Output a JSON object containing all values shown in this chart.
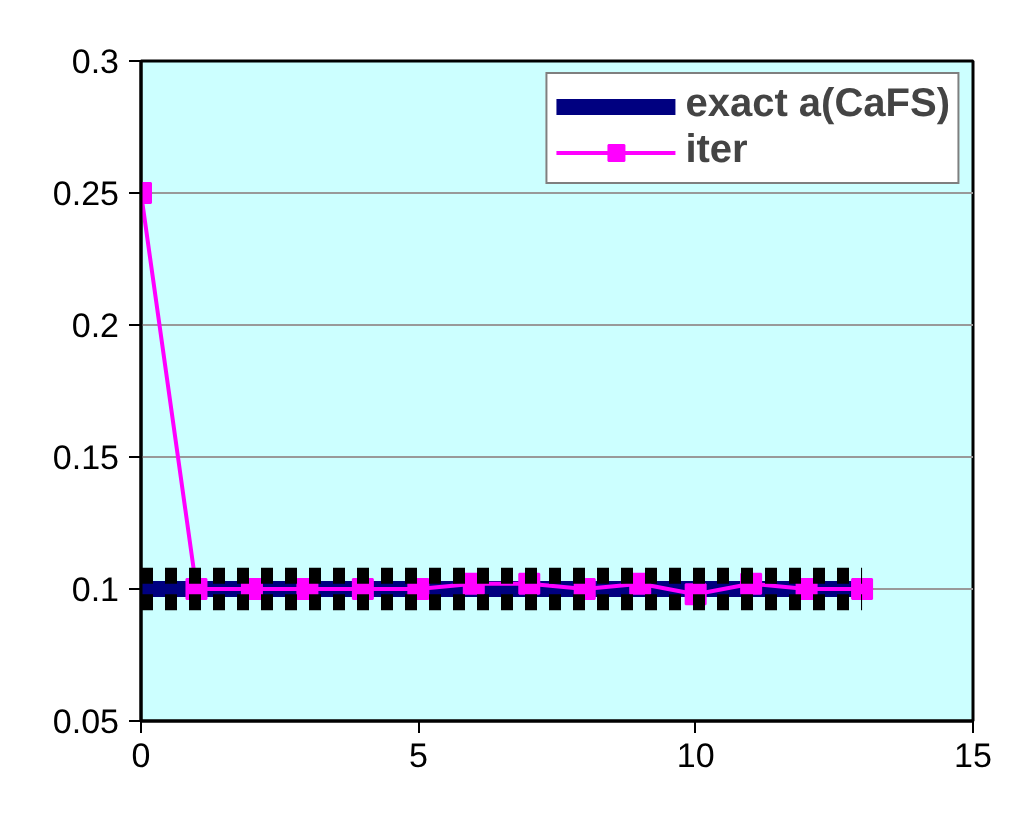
{
  "chart_data": {
    "type": "line",
    "x": [
      0,
      1,
      2,
      3,
      4,
      5,
      6,
      7,
      8,
      9,
      10,
      11,
      12,
      13
    ],
    "series": [
      {
        "name": "exact a(CaFS)",
        "color": "#000080",
        "marker": "none",
        "line_style": "solid",
        "values": [
          0.1,
          0.1,
          0.1,
          0.1,
          0.1,
          0.1,
          0.1,
          0.1,
          0.1,
          0.1,
          0.1,
          0.1,
          0.1,
          0.1
        ]
      },
      {
        "name": "iter",
        "color": "#ff00ff",
        "marker": "square",
        "line_style": "solid",
        "values": [
          0.25,
          0.1,
          0.1,
          0.1,
          0.1,
          0.1,
          0.102,
          0.102,
          0.1,
          0.102,
          0.098,
          0.102,
          0.1,
          0.1
        ]
      },
      {
        "color": "#000000",
        "marker": "none",
        "line_style": "dashed",
        "values": [
          0.105,
          0.105,
          0.105,
          0.105,
          0.105,
          0.105,
          0.105,
          0.105,
          0.105,
          0.105,
          0.105,
          0.105,
          0.105,
          0.105
        ]
      },
      {
        "color": "#000000",
        "marker": "none",
        "line_style": "dashed",
        "values": [
          0.095,
          0.095,
          0.095,
          0.095,
          0.095,
          0.095,
          0.095,
          0.095,
          0.095,
          0.095,
          0.095,
          0.095,
          0.095,
          0.095
        ]
      }
    ],
    "xlim": [
      0,
      15
    ],
    "xticks": [
      0,
      5,
      10,
      15
    ],
    "ylim": [
      0.05,
      0.3
    ],
    "yticks": [
      0.05,
      0.1,
      0.15,
      0.2,
      0.25,
      0.3
    ],
    "grid": "y",
    "legend": "top right"
  }
}
